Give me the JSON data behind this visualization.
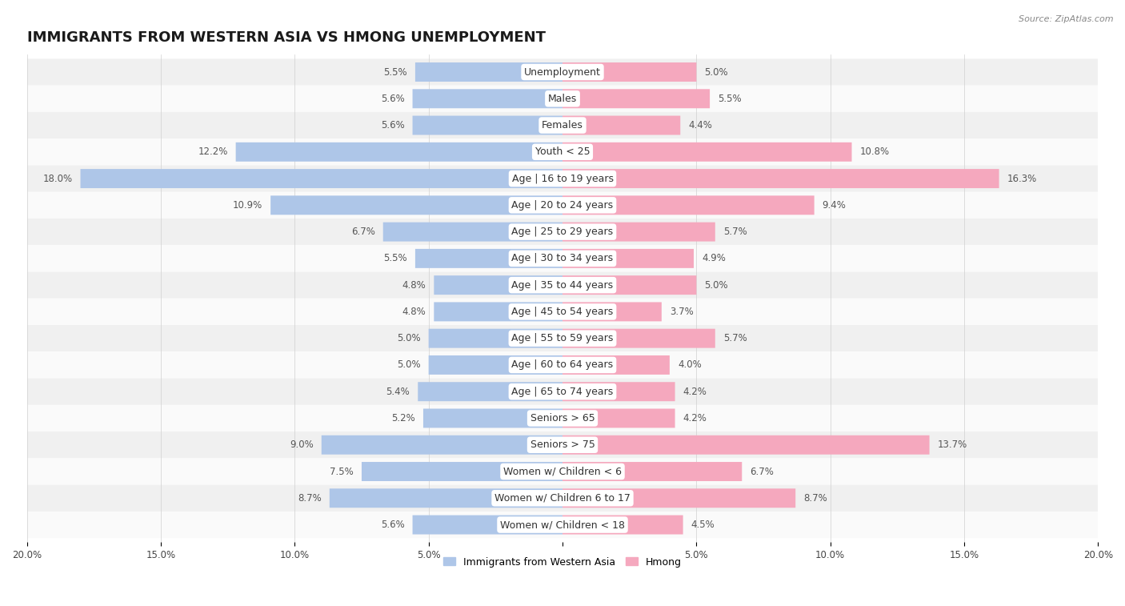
{
  "title": "IMMIGRANTS FROM WESTERN ASIA VS HMONG UNEMPLOYMENT",
  "source": "Source: ZipAtlas.com",
  "categories": [
    "Unemployment",
    "Males",
    "Females",
    "Youth < 25",
    "Age | 16 to 19 years",
    "Age | 20 to 24 years",
    "Age | 25 to 29 years",
    "Age | 30 to 34 years",
    "Age | 35 to 44 years",
    "Age | 45 to 54 years",
    "Age | 55 to 59 years",
    "Age | 60 to 64 years",
    "Age | 65 to 74 years",
    "Seniors > 65",
    "Seniors > 75",
    "Women w/ Children < 6",
    "Women w/ Children 6 to 17",
    "Women w/ Children < 18"
  ],
  "left_values": [
    5.5,
    5.6,
    5.6,
    12.2,
    18.0,
    10.9,
    6.7,
    5.5,
    4.8,
    4.8,
    5.0,
    5.0,
    5.4,
    5.2,
    9.0,
    7.5,
    8.7,
    5.6
  ],
  "right_values": [
    5.0,
    5.5,
    4.4,
    10.8,
    16.3,
    9.4,
    5.7,
    4.9,
    5.0,
    3.7,
    5.7,
    4.0,
    4.2,
    4.2,
    13.7,
    6.7,
    8.7,
    4.5
  ],
  "left_color": "#aec6e8",
  "right_color": "#f5a8be",
  "left_label": "Immigrants from Western Asia",
  "right_label": "Hmong",
  "axis_max": 20.0,
  "title_fontsize": 13,
  "label_fontsize": 9,
  "value_fontsize": 8.5,
  "x_tick_labels": [
    "20.0%",
    "15.0%",
    "10.0%",
    "5.0%",
    "",
    "5.0%",
    "10.0%",
    "15.0%",
    "20.0%"
  ],
  "x_ticks": [
    -20,
    -15,
    -10,
    -5,
    0,
    5,
    10,
    15,
    20
  ]
}
